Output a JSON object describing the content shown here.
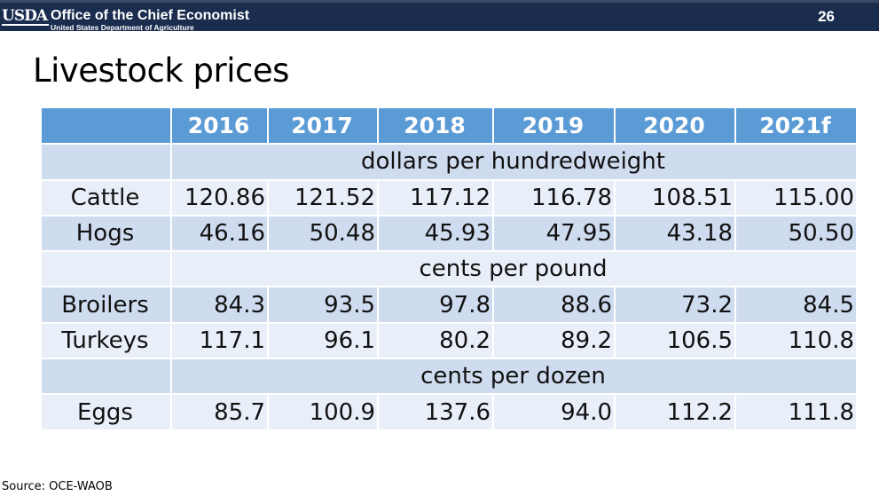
{
  "header": {
    "logo_text": "USDA",
    "office": "Office of the Chief Economist",
    "department": "United States Department of Agriculture",
    "slide_number": "26"
  },
  "slide": {
    "title": "Livestock prices",
    "source": "Source: OCE-WAOB"
  },
  "table": {
    "columns": [
      "",
      "2016",
      "2017",
      "2018",
      "2019",
      "2020",
      "2021f"
    ],
    "sections": [
      {
        "unit": "dollars per hundredweight",
        "rows": [
          {
            "label": "Cattle",
            "values": [
              "120.86",
              "121.52",
              "117.12",
              "116.78",
              "108.51",
              "115.00"
            ]
          },
          {
            "label": "Hogs",
            "values": [
              "46.16",
              "50.48",
              "45.93",
              "47.95",
              "43.18",
              "50.50"
            ]
          }
        ]
      },
      {
        "unit": "cents per pound",
        "rows": [
          {
            "label": "Broilers",
            "values": [
              "84.3",
              "93.5",
              "97.8",
              "88.6",
              "73.2",
              "84.5"
            ]
          },
          {
            "label": "Turkeys",
            "values": [
              "117.1",
              "96.1",
              "80.2",
              "89.2",
              "106.5",
              "110.8"
            ]
          }
        ]
      },
      {
        "unit": "cents per dozen",
        "rows": [
          {
            "label": "Eggs",
            "values": [
              "85.7",
              "100.9",
              "137.6",
              "94.0",
              "112.2",
              "111.8"
            ]
          }
        ]
      }
    ]
  },
  "colors": {
    "header_bar": "#1a2d4f",
    "table_header": "#5b9bd5",
    "band_dark": "#cfdcef",
    "band_light": "#e9eff8"
  }
}
